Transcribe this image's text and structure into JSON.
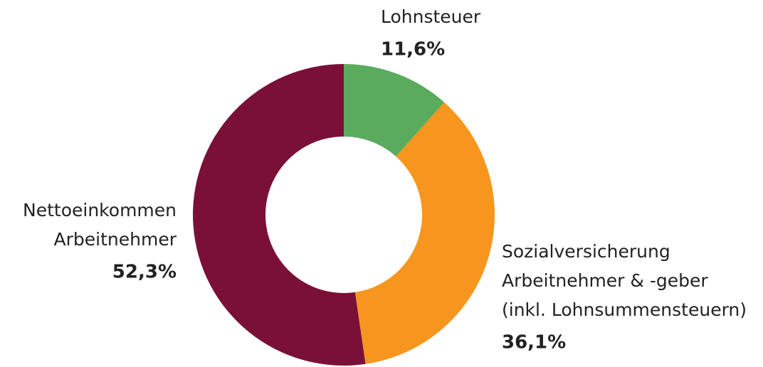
{
  "chart_data": {
    "type": "donut",
    "categories": [
      [
        "Lohnsteuer"
      ],
      [
        "Sozialversicherung",
        "Arbeitnehmer & -geber",
        "(inkl. Lohnsummensteuern)"
      ],
      [
        "Nettoeinkommen",
        "Arbeitnehmer"
      ]
    ],
    "values": [
      11.6,
      36.1,
      52.3
    ],
    "value_labels": [
      "11,6%",
      "36,1%",
      "52,3%"
    ],
    "colors": [
      "#5aab5e",
      "#f7961e",
      "#7a1038"
    ]
  }
}
